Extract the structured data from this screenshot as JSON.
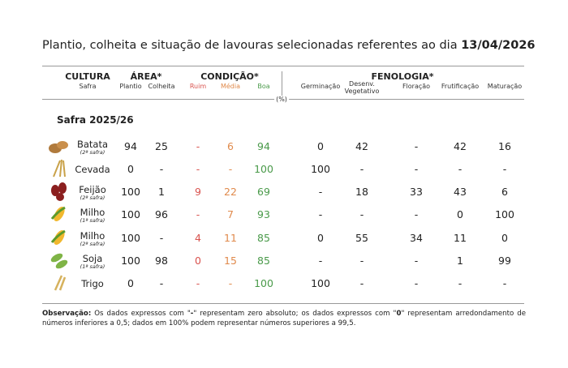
{
  "title": {
    "text": "Plantio, colheita e situação de lavouras selecionadas referentes ao dia",
    "date": "13/04/2026"
  },
  "table": {
    "groups": [
      "CULTURA",
      "ÁREA*",
      "CONDIÇÃO*",
      "FENOLOGIA*"
    ],
    "columns": [
      "Safra",
      "Plantio",
      "Colheita",
      "Ruim",
      "Média",
      "Boa",
      "Germinação",
      "Desenv. Vegetativo",
      "Floração",
      "Frutificação",
      "Maturação"
    ],
    "unit": "(%)",
    "section": "Safra 2025/26",
    "rows": [
      {
        "name": "Batata",
        "sub": "(2ª safra)",
        "cells": [
          94,
          25,
          "-",
          6,
          94,
          0,
          42,
          "-",
          42,
          16
        ]
      },
      {
        "name": "Cevada",
        "cells": [
          0,
          "-",
          "-",
          "-",
          100,
          100,
          "-",
          "-",
          "-",
          "-"
        ]
      },
      {
        "name": "Feijão",
        "sub": "(2ª safra)",
        "cells": [
          100,
          1,
          9,
          22,
          69,
          "-",
          18,
          33,
          43,
          6
        ]
      },
      {
        "name": "Milho",
        "sub": "(1ª safra)",
        "cells": [
          100,
          96,
          "-",
          7,
          93,
          "-",
          "-",
          "-",
          0,
          100
        ]
      },
      {
        "name": "Milho",
        "sub": "(2ª safra)",
        "cells": [
          100,
          "-",
          4,
          11,
          85,
          0,
          55,
          34,
          11,
          0
        ]
      },
      {
        "name": "Soja",
        "sub": "(1ª safra)",
        "cells": [
          100,
          98,
          0,
          15,
          85,
          "-",
          "-",
          "-",
          1,
          99
        ]
      },
      {
        "name": "Trigo",
        "cells": [
          0,
          "-",
          "-",
          "-",
          100,
          100,
          "-",
          "-",
          "-",
          "-"
        ]
      }
    ]
  },
  "note": {
    "label": "Observação:",
    "text1": "Os dados expressos com \"",
    "dash": "-",
    "text2": "\" representam zero absoluto; os dados expressos com \"",
    "zero": "0",
    "text3": "\" representam arredondamento de números inferiores a 0,5; dados em 100% podem representar números superiores a 99,5."
  }
}
